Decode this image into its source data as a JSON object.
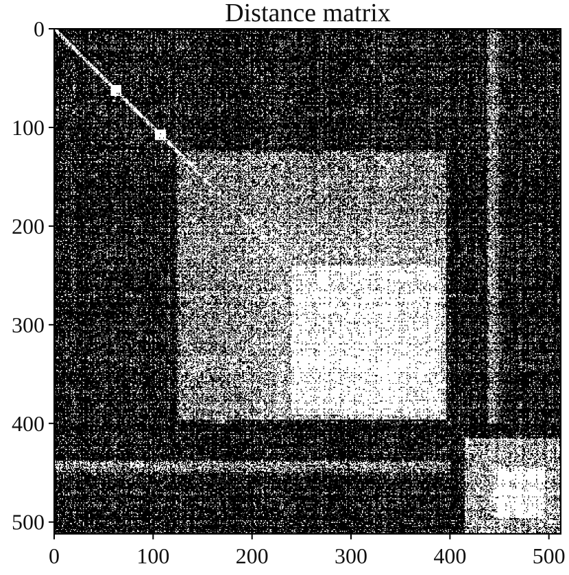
{
  "chart_data": {
    "type": "heatmap",
    "title": "Distance matrix",
    "xlabel": "",
    "ylabel": "",
    "matrix_size": 512,
    "colormap": "binary (white = low distance, black = high distance)",
    "grid": false,
    "legend": "none",
    "x_ticks": [
      0,
      100,
      200,
      300,
      400,
      500
    ],
    "y_ticks": [
      0,
      100,
      200,
      300,
      400,
      500
    ],
    "x_tick_labels": [
      "0",
      "100",
      "200",
      "300",
      "400",
      "500"
    ],
    "y_tick_labels": [
      "0",
      "100",
      "200",
      "300",
      "400",
      "500"
    ],
    "xlim": [
      0,
      512
    ],
    "ylim": [
      512,
      0
    ],
    "diagonal": "white (zero self-distance)",
    "similarity_blocks": [
      {
        "label": "small block",
        "start": 57,
        "end": 67
      },
      {
        "label": "small block",
        "start": 102,
        "end": 112
      },
      {
        "label": "large block",
        "start": 125,
        "end": 395
      },
      {
        "label": "dense core",
        "start": 240,
        "end": 390
      },
      {
        "label": "lower-right block",
        "start": 415,
        "end": 510
      },
      {
        "label": "dense core",
        "start": 445,
        "end": 495
      }
    ]
  },
  "colors": {
    "high_distance": "#000000",
    "low_distance": "#ffffff",
    "axis": "#000000",
    "text": "#111111"
  }
}
